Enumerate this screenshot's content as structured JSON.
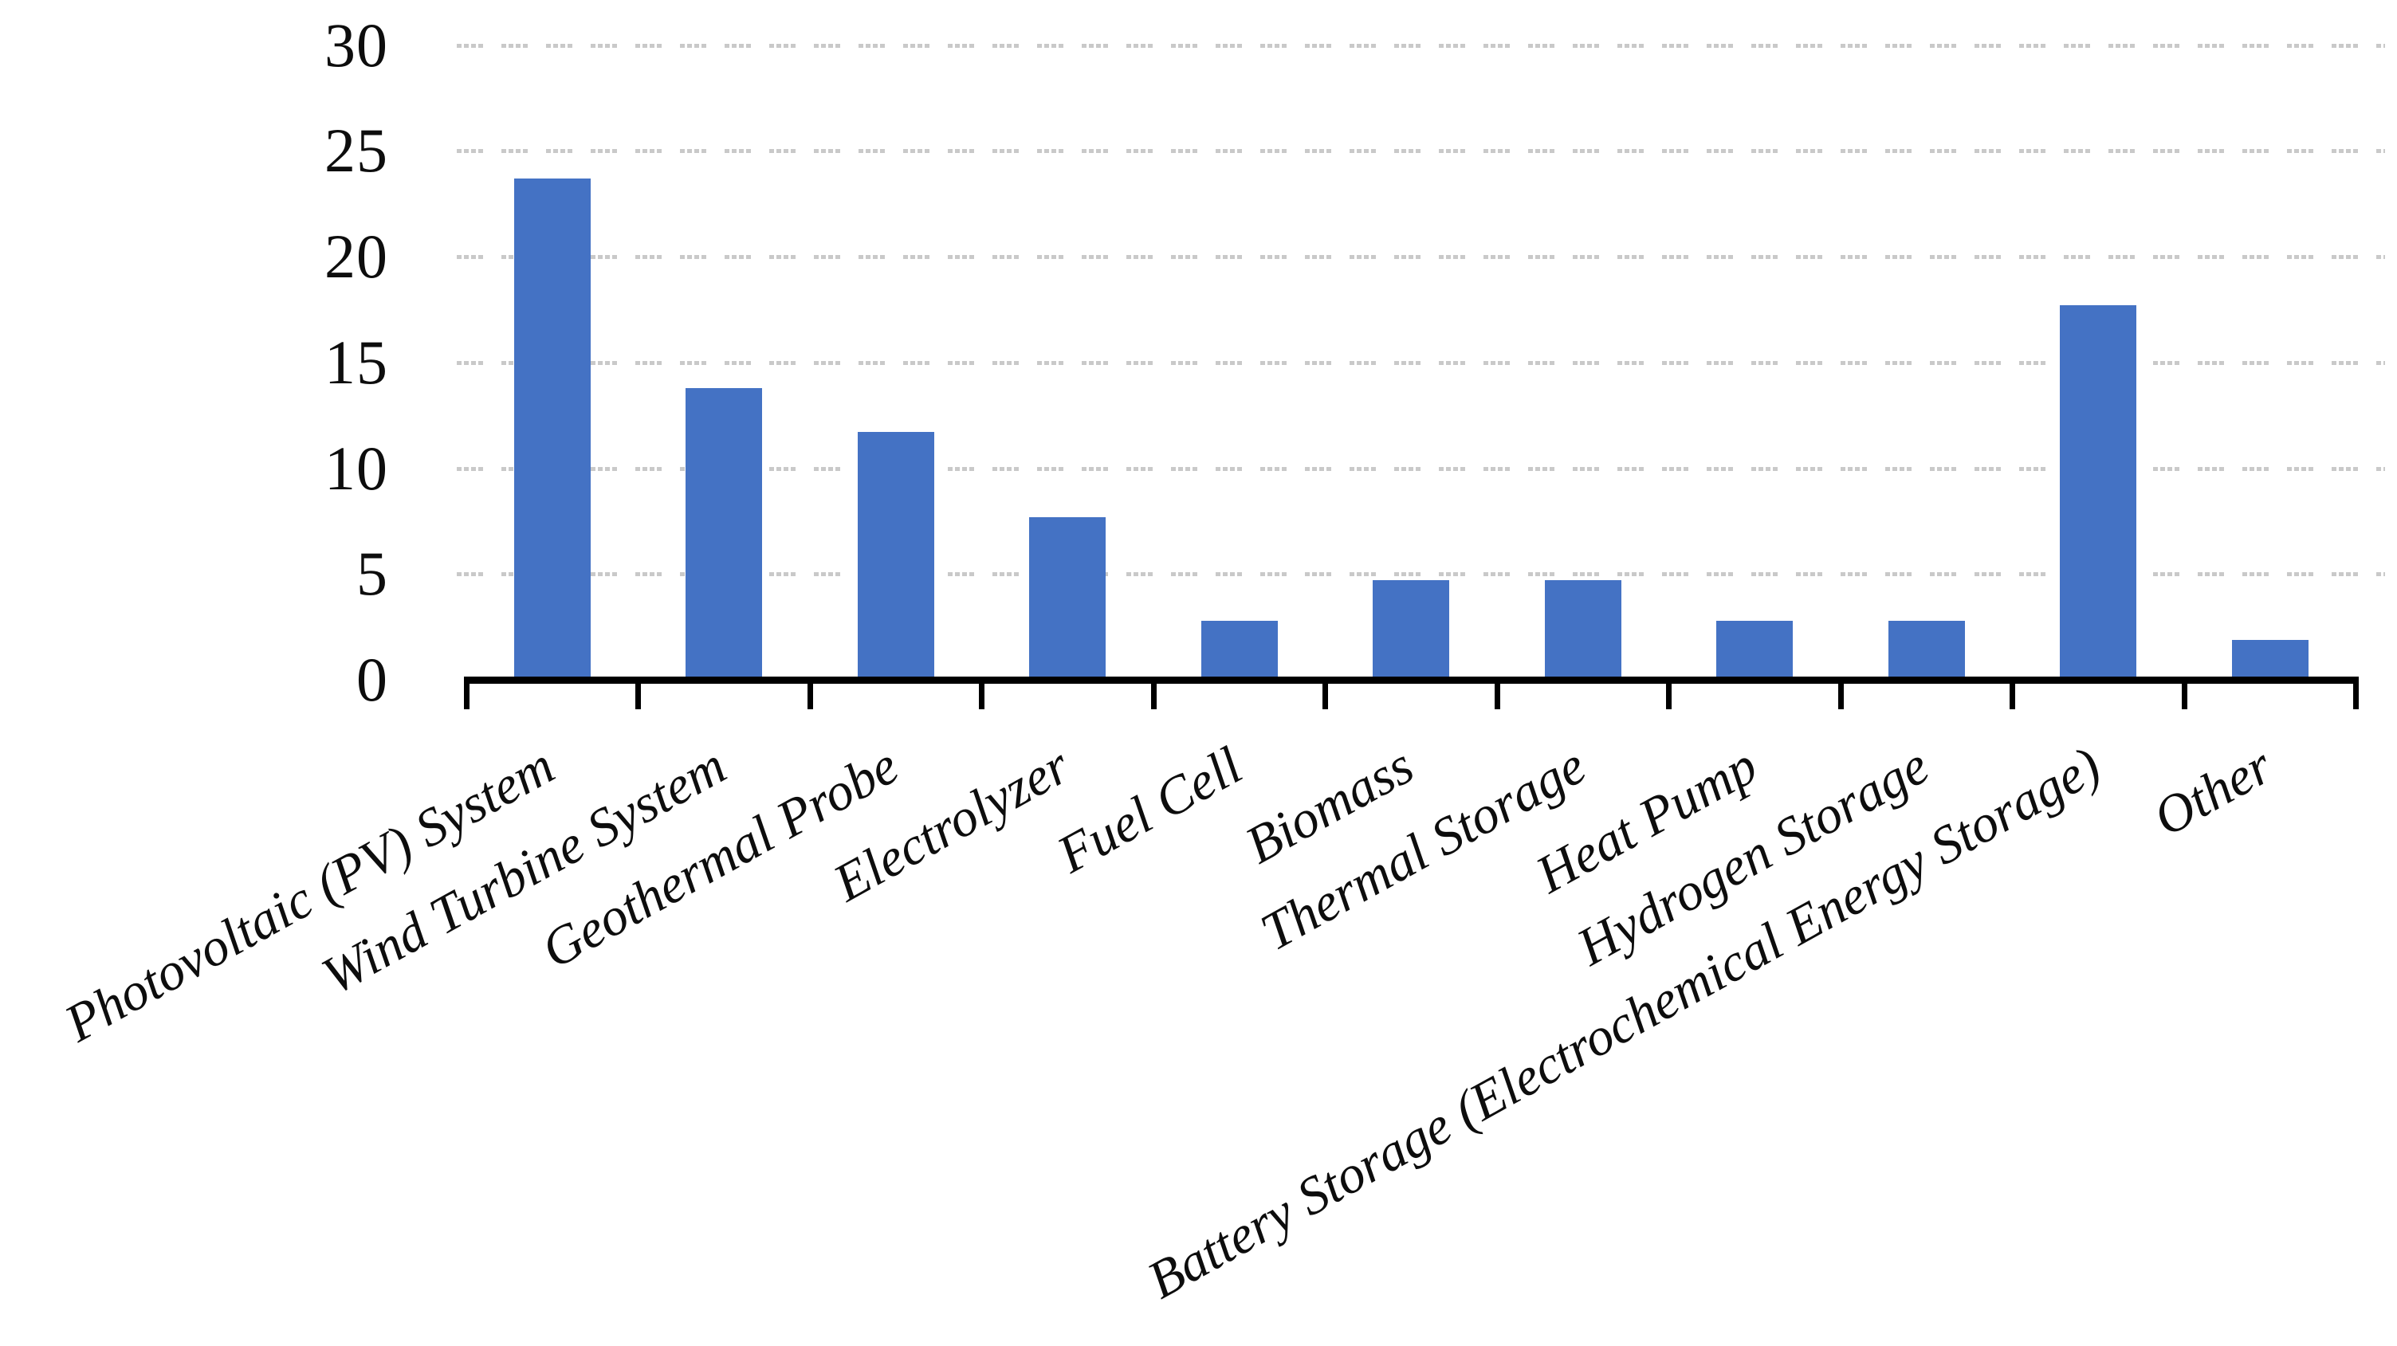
{
  "chart_data": {
    "type": "bar",
    "title": "",
    "xlabel": "",
    "ylabel": "",
    "categories": [
      "Photovoltaic (PV) System",
      "Wind Turbine System",
      "Geothermal Probe",
      "Electrolyzer",
      "Fuel Cell",
      "Biomass",
      "Thermal Storage",
      "Heat Pump",
      "Hydrogen Storage",
      "Battery Storage (Electrochemical Energy Storage)",
      "Other"
    ],
    "values": [
      23.7,
      13.8,
      11.7,
      7.7,
      2.8,
      4.7,
      4.7,
      2.8,
      2.8,
      17.7,
      1.9
    ],
    "ylim": [
      0,
      30
    ],
    "y_ticks": [
      0,
      5,
      10,
      15,
      20,
      25,
      30
    ],
    "grid": "horizontal dashed",
    "legend": "none",
    "tick_label_rotation_deg": -29,
    "colors": {
      "bar": "#4472C4",
      "gridline": "#C9C9C9",
      "axis": "#000000",
      "text": "#0D0D0D",
      "background": "#FFFFFF"
    }
  }
}
